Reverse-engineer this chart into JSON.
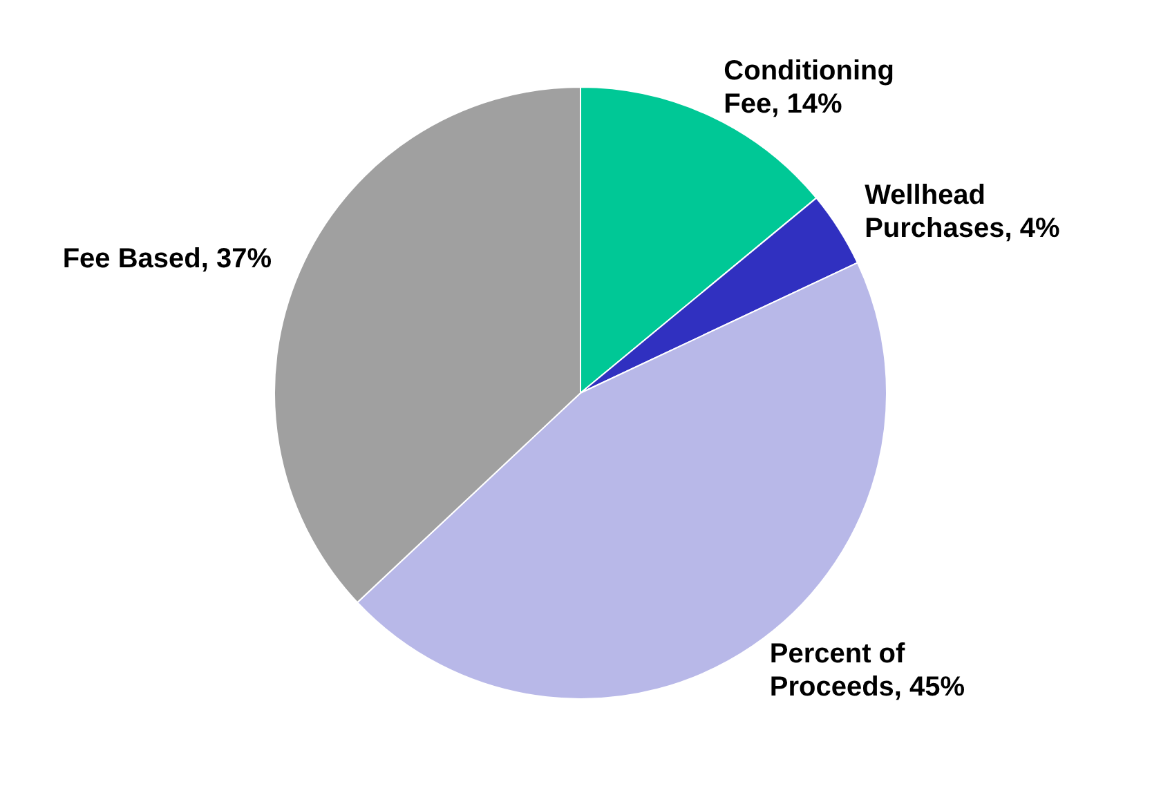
{
  "chart_data": {
    "type": "pie",
    "categories": [
      "Conditioning Fee",
      "Wellhead Purchases",
      "Percent of Proceeds",
      "Fee Based"
    ],
    "values": [
      14,
      4,
      45,
      37
    ],
    "colors": [
      "#00c896",
      "#3030c0",
      "#b8b8e8",
      "#a0a0a0"
    ],
    "value_labels": [
      "14%",
      "4%",
      "45%",
      "37%"
    ],
    "legend": false
  }
}
